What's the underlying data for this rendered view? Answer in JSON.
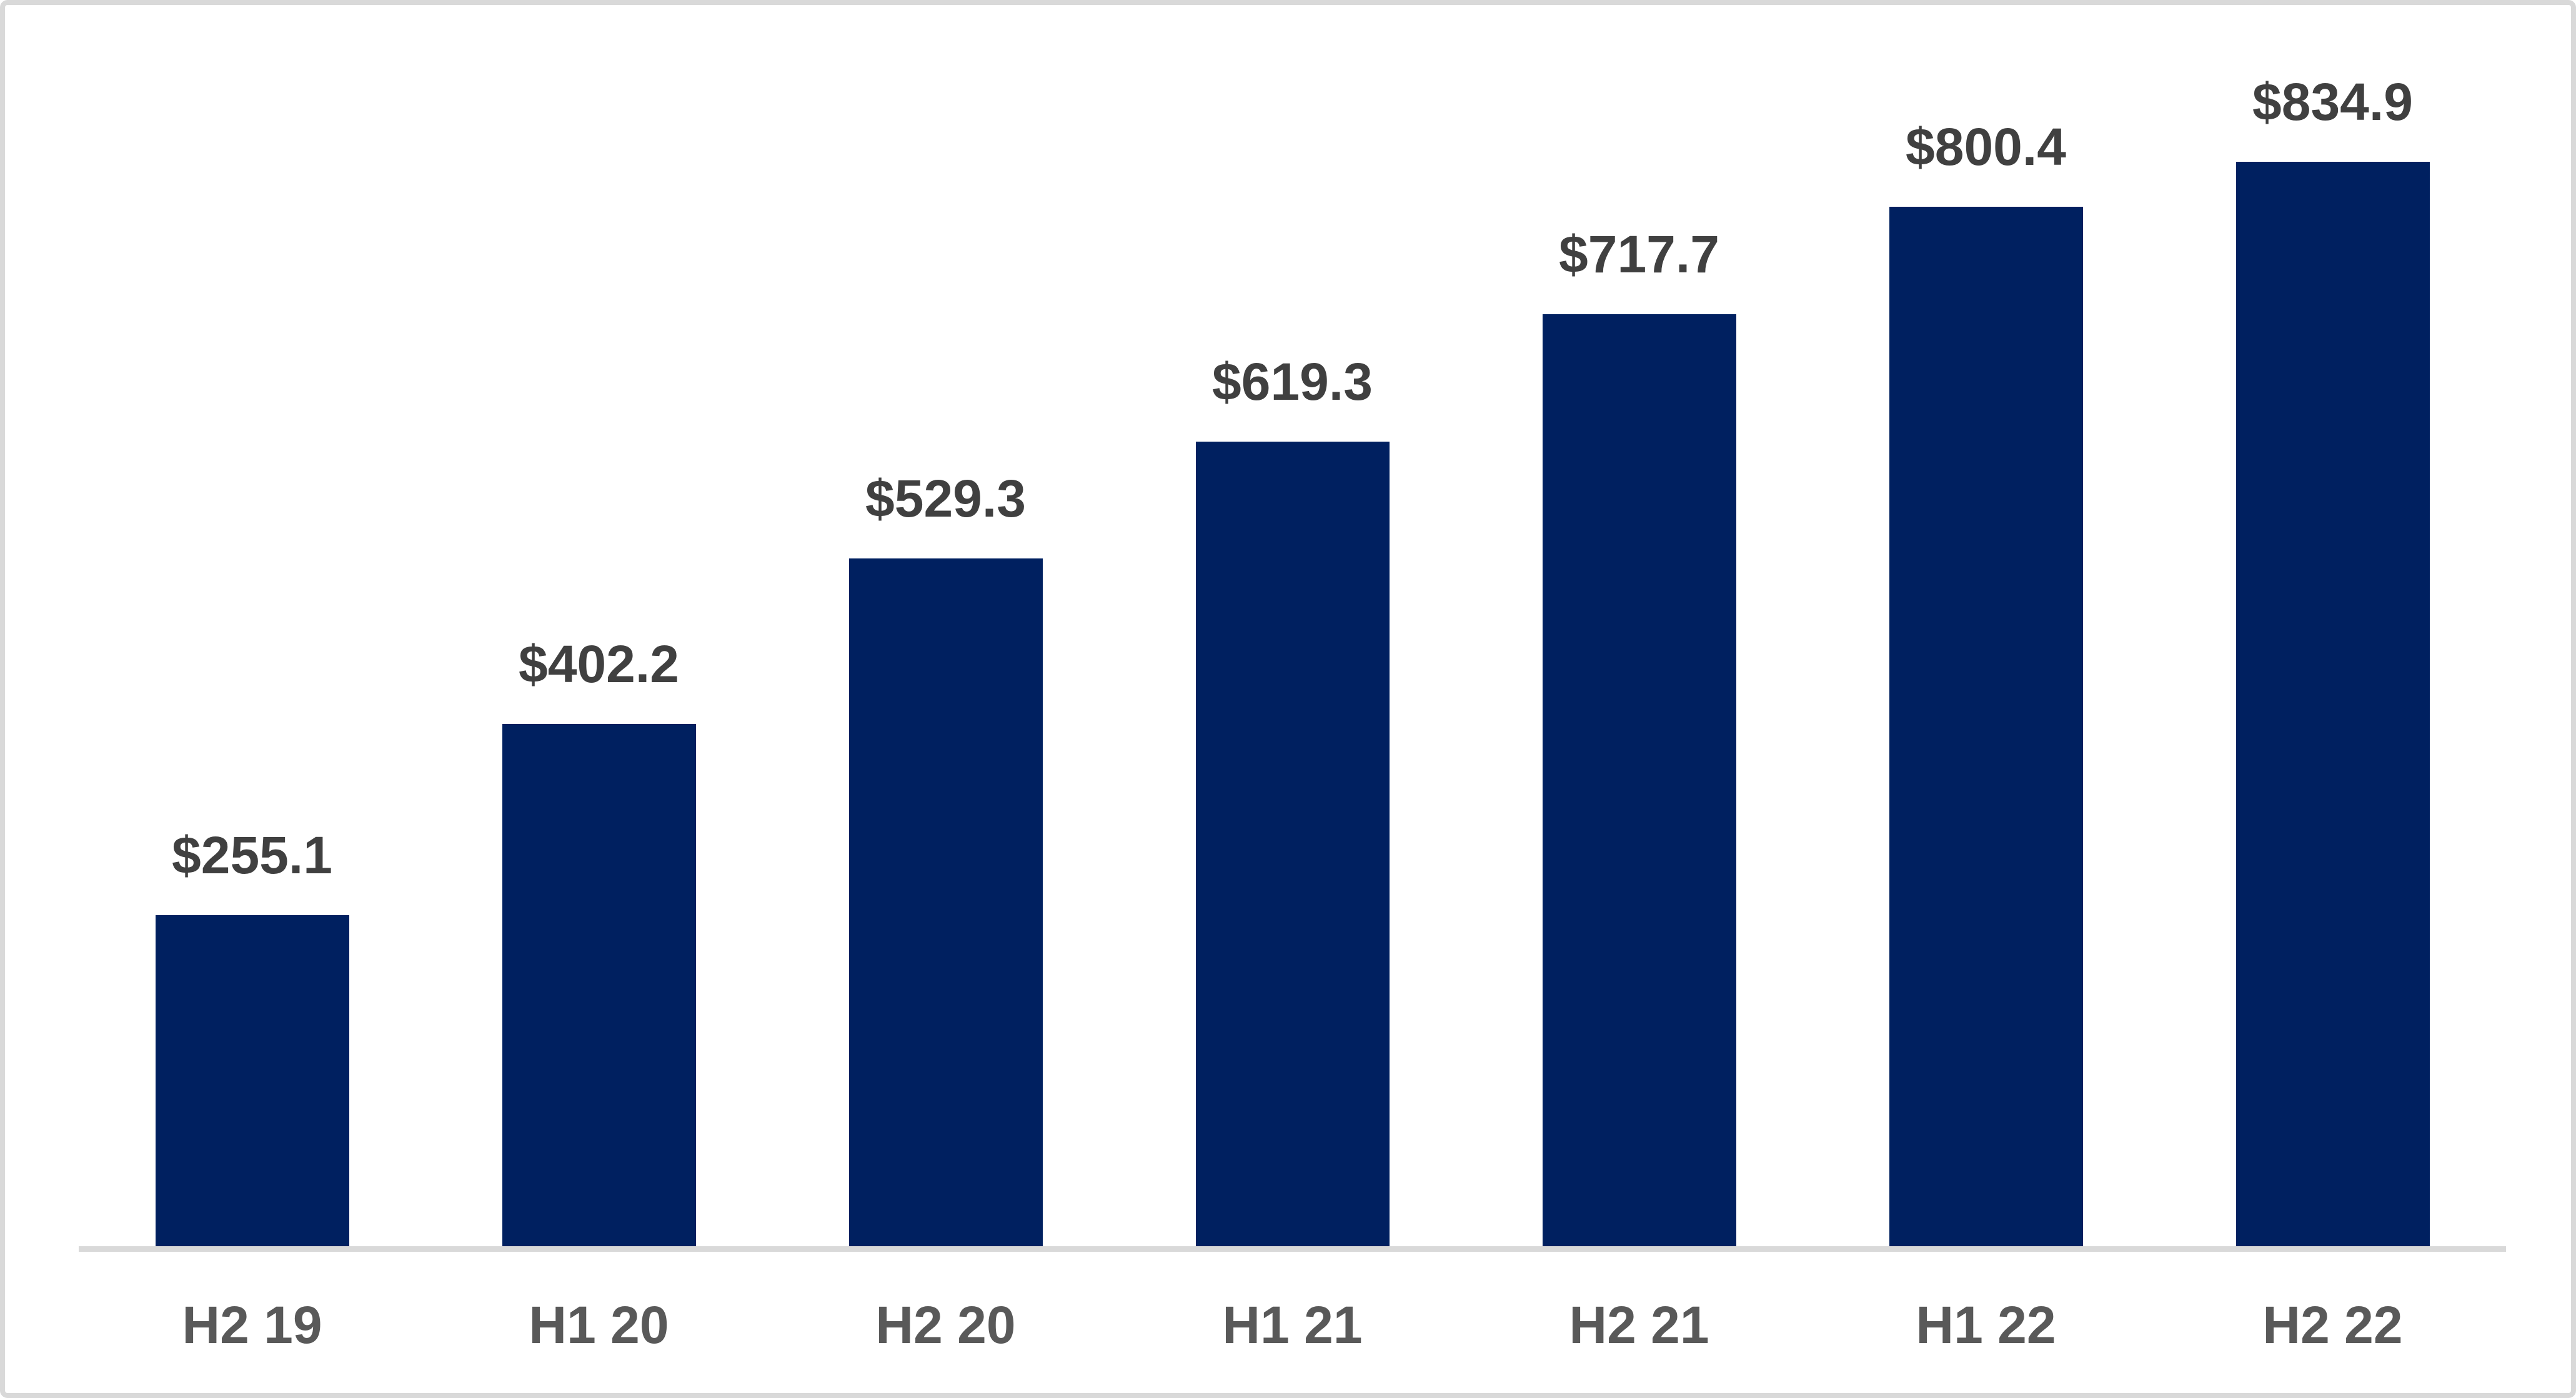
{
  "chart_data": {
    "type": "bar",
    "categories": [
      "H2 19",
      "H1 20",
      "H2 20",
      "H1 21",
      "H2 21",
      "H1 22",
      "H2 22"
    ],
    "values": [
      255.1,
      402.2,
      529.3,
      619.3,
      717.7,
      800.4,
      834.9
    ],
    "value_labels": [
      "$255.1",
      "$402.2",
      "$529.3",
      "$619.3",
      "$717.7",
      "$800.4",
      "$834.9"
    ],
    "series_name": "",
    "ylim": [
      0,
      900
    ],
    "grid": false,
    "legend_position": "none",
    "bar_color": "#002060",
    "value_label_color": "#404040",
    "category_label_color": "#595959",
    "axis_line_color": "#d9d9d9",
    "frame_border_color": "#d9d9d9",
    "background_color": "#ffffff"
  }
}
